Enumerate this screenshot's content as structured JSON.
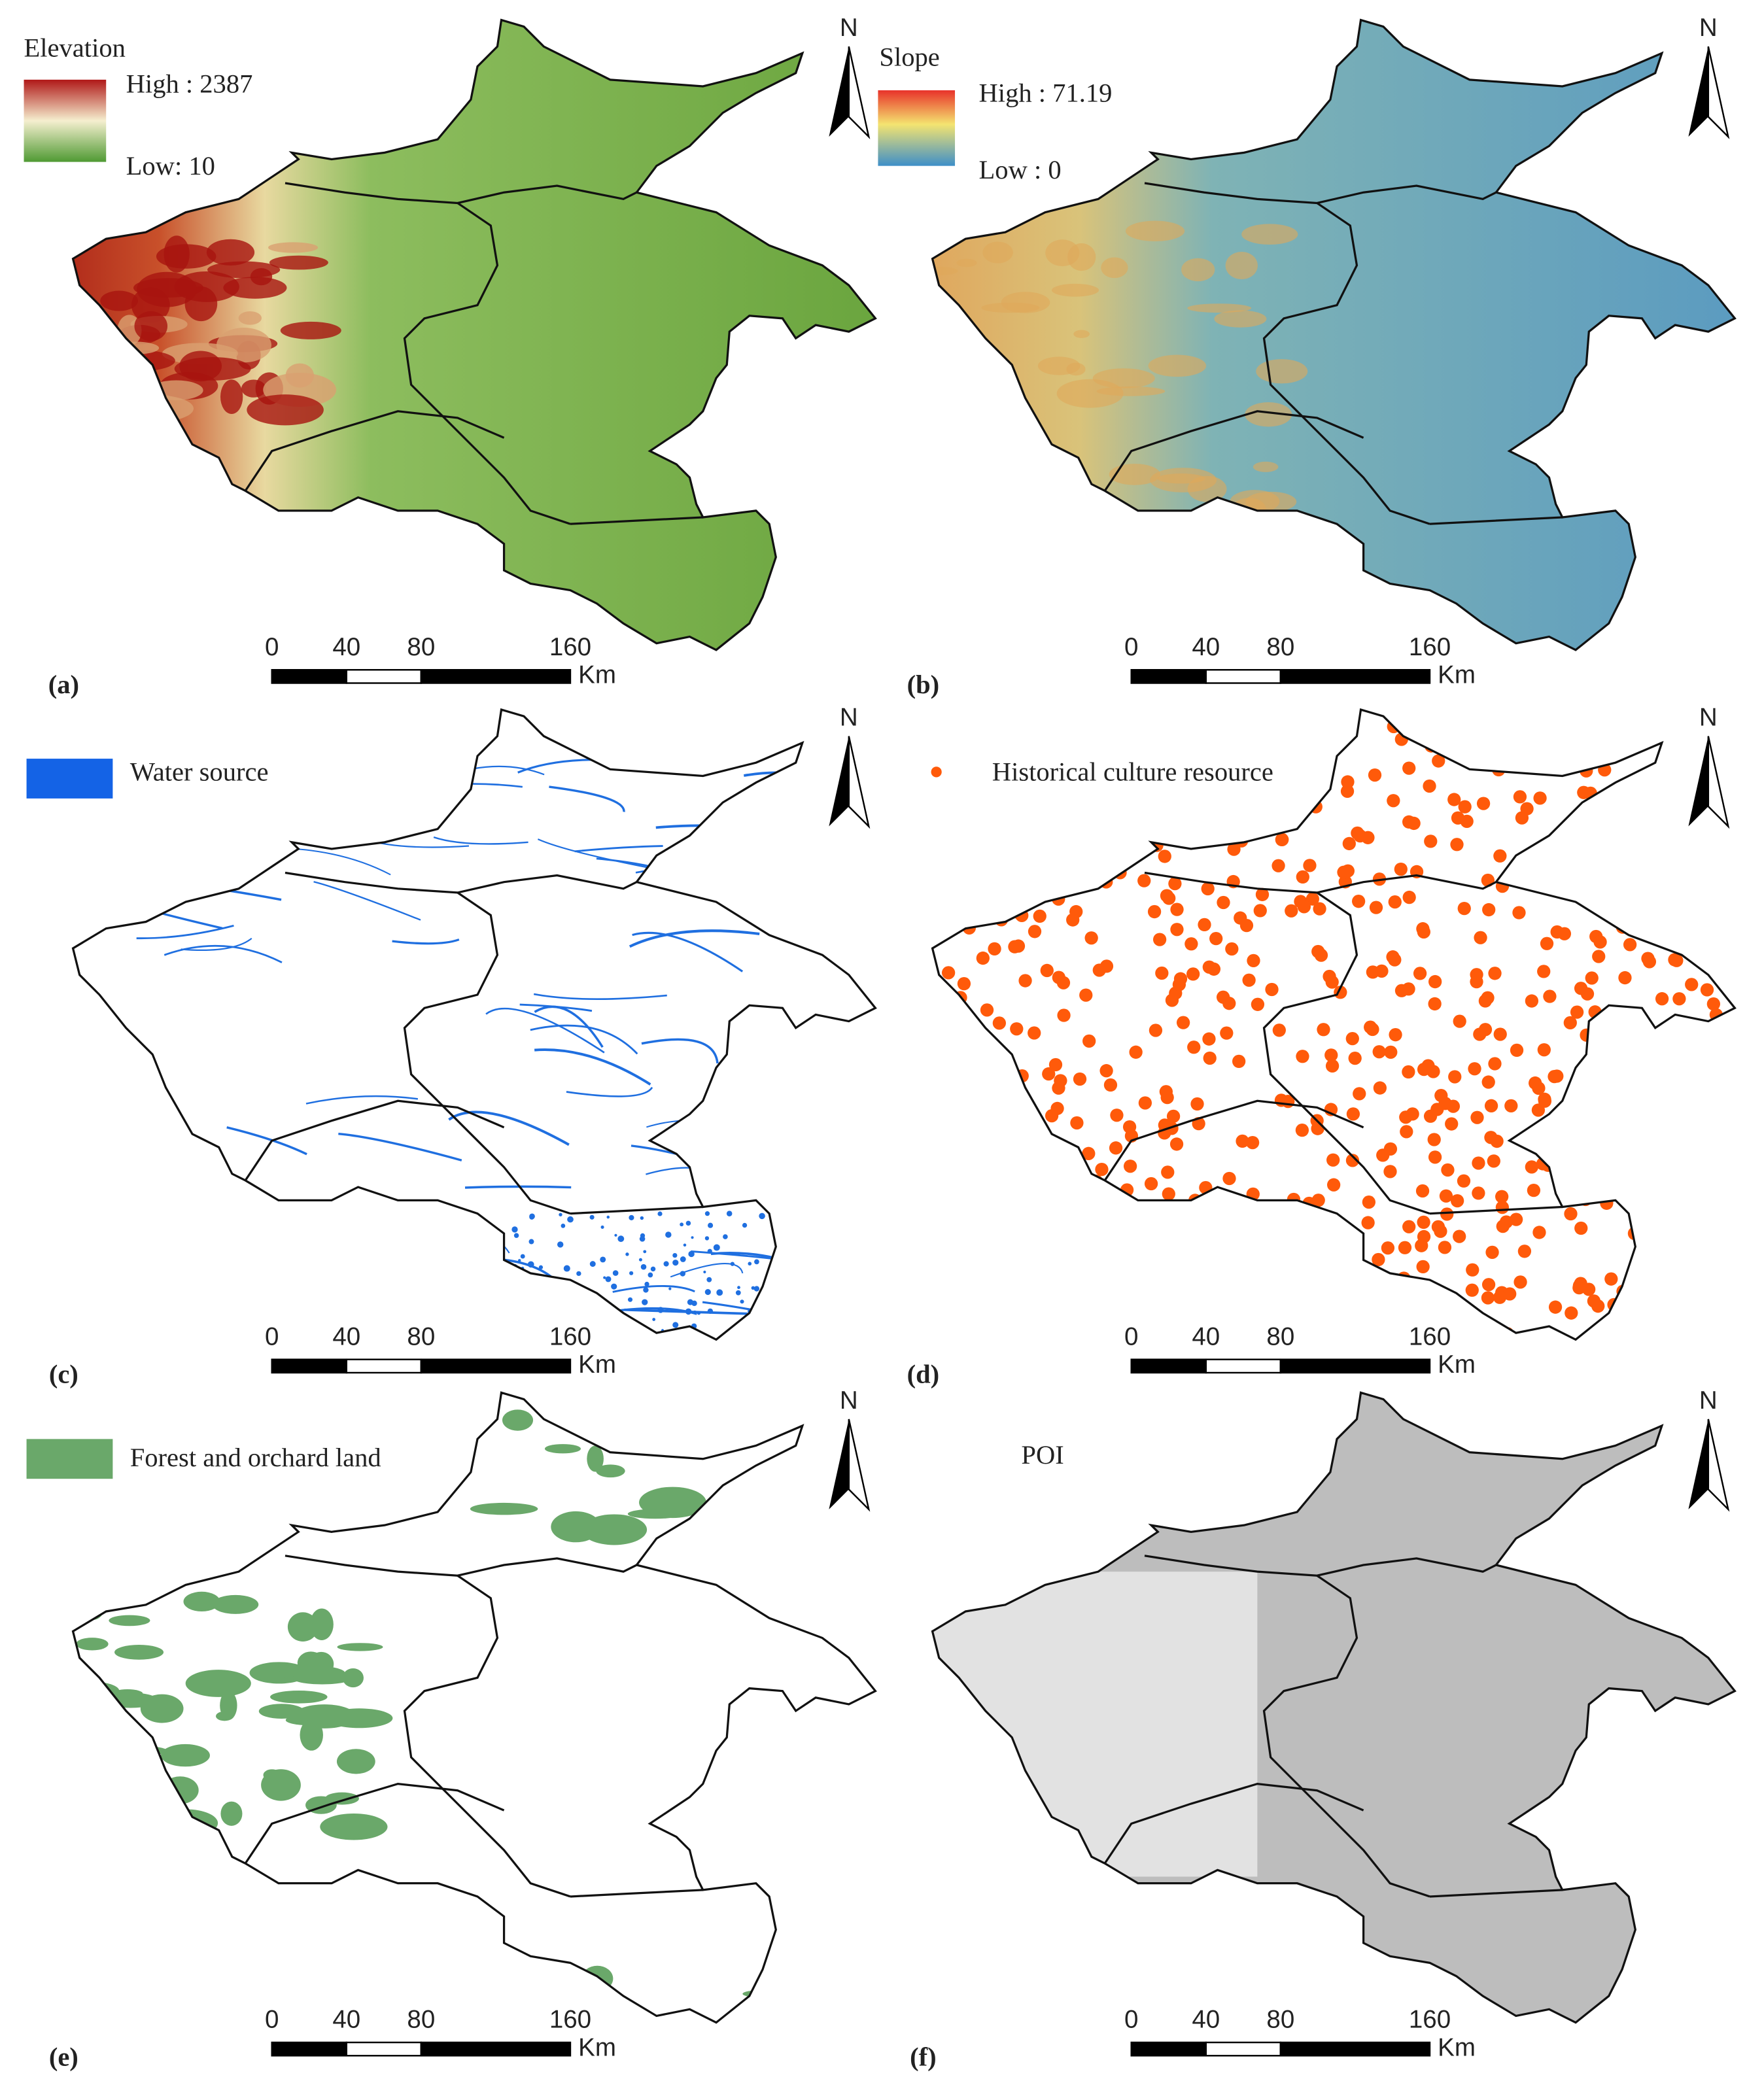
{
  "north_label": "N",
  "scale_bar": {
    "ticks": [
      0,
      40,
      80,
      160
    ],
    "unit": "Km"
  },
  "panels": [
    {
      "label": "(a)",
      "legend_title": "Elevation",
      "legend_high": "High : 2387",
      "legend_low": "Low: 10"
    },
    {
      "label": "(b)",
      "legend_title": "Slope",
      "legend_high": "High : 71.19",
      "legend_low": "Low : 0"
    },
    {
      "label": "(c)",
      "legend_item": "Water source"
    },
    {
      "label": "(d)",
      "legend_item": "Historical culture resource"
    },
    {
      "label": "(e)",
      "legend_item": "Forest and orchard land"
    },
    {
      "label": "(f)",
      "legend_item": "POI"
    }
  ]
}
